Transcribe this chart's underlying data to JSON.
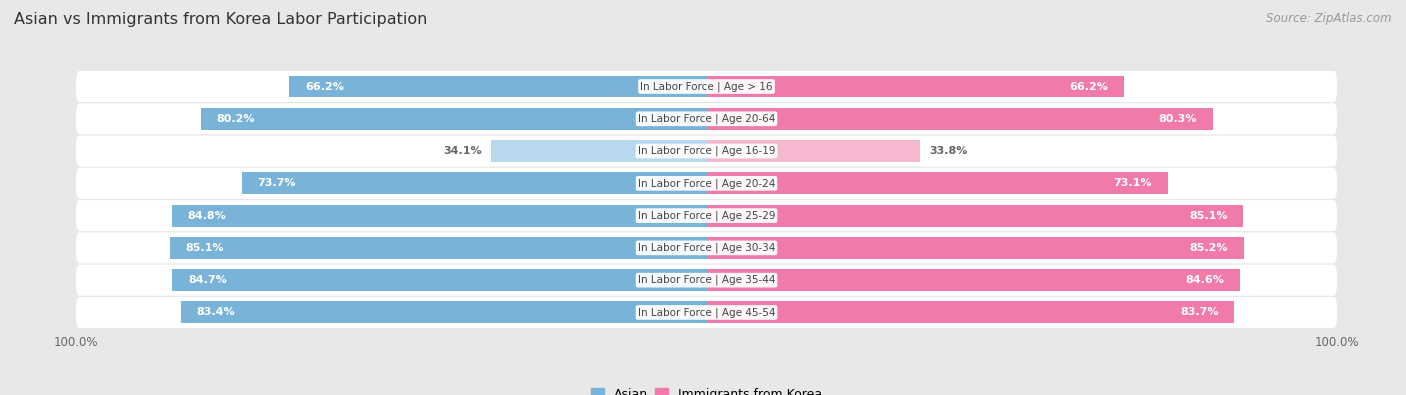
{
  "title": "Asian vs Immigrants from Korea Labor Participation",
  "source": "Source: ZipAtlas.com",
  "categories": [
    "In Labor Force | Age > 16",
    "In Labor Force | Age 20-64",
    "In Labor Force | Age 16-19",
    "In Labor Force | Age 20-24",
    "In Labor Force | Age 25-29",
    "In Labor Force | Age 30-34",
    "In Labor Force | Age 35-44",
    "In Labor Force | Age 45-54"
  ],
  "asian_values": [
    66.2,
    80.2,
    34.1,
    73.7,
    84.8,
    85.1,
    84.7,
    83.4
  ],
  "korea_values": [
    66.2,
    80.3,
    33.8,
    73.1,
    85.1,
    85.2,
    84.6,
    83.7
  ],
  "asian_color": "#7ab3d8",
  "asian_color_light": "#b8d8ee",
  "korea_color": "#f07aaa",
  "korea_color_light": "#f5b8d0",
  "bar_height": 0.68,
  "max_val": 100.0,
  "bg_color": "#e8e8e8",
  "row_bg_light": "#f5f5f5",
  "row_bg_dark": "#e8e8e8",
  "label_color_white": "#ffffff",
  "label_color_dark": "#666666",
  "title_fontsize": 11.5,
  "source_fontsize": 8.5,
  "axis_label_fontsize": 8.5,
  "bar_label_fontsize": 8,
  "cat_label_fontsize": 7.5,
  "legend_fontsize": 9,
  "threshold": 50
}
